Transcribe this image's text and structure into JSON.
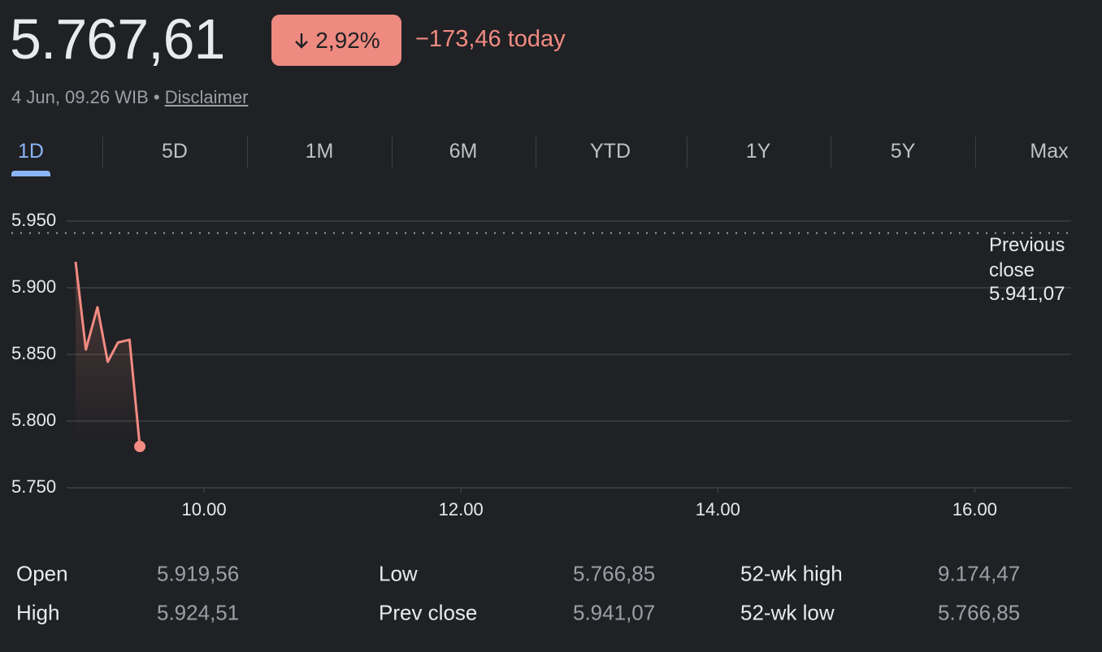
{
  "header": {
    "price": "5.767,61",
    "change_percent": "2,92%",
    "change_today": "−173,46 today",
    "timestamp": "4 Jun, 09.26 WIB",
    "separator": "•",
    "disclaimer": "Disclaimer"
  },
  "tabs": {
    "items": [
      "1D",
      "5D",
      "1M",
      "6M",
      "YTD",
      "1Y",
      "5Y",
      "Max"
    ],
    "selected": 0
  },
  "chart_data": {
    "type": "line",
    "color": "#f28b82",
    "x": [
      9.0,
      9.08,
      9.17,
      9.25,
      9.33,
      9.42,
      9.5
    ],
    "values": [
      5919.5,
      5853.7,
      5885.4,
      5844.5,
      5859,
      5861,
      5781
    ],
    "xlim": [
      8.5,
      16.75
    ],
    "xticks": [
      {
        "value": 10,
        "label": "10.00"
      },
      {
        "value": 12,
        "label": "12.00"
      },
      {
        "value": 14,
        "label": "14.00"
      },
      {
        "value": 16,
        "label": "16.00"
      }
    ],
    "ylim": [
      5750,
      5950
    ],
    "yticks": [
      {
        "value": 5750,
        "label": "5.750"
      },
      {
        "value": 5800,
        "label": "5.800"
      },
      {
        "value": 5850,
        "label": "5.850"
      },
      {
        "value": 5900,
        "label": "5.900"
      },
      {
        "value": 5950,
        "label": "5.950"
      }
    ],
    "grid": true,
    "reference_line": {
      "value": 5941.07,
      "label": "Previous close",
      "value_label": "5.941,07"
    }
  },
  "stats": {
    "rows": [
      [
        "Open",
        "5.919,56",
        "Low",
        "5.766,85",
        "52-wk high",
        "9.174,47"
      ],
      [
        "High",
        "5.924,51",
        "Prev close",
        "5.941,07",
        "52-wk low",
        "5.766,85"
      ]
    ]
  }
}
